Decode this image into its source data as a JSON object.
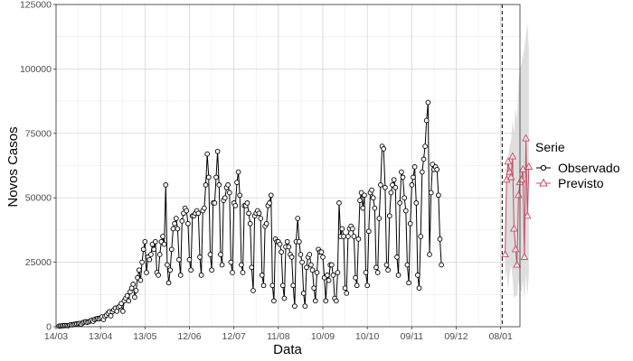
{
  "chart_data": {
    "type": "line",
    "xlabel": "Data",
    "ylabel": "Novos Casos",
    "ylim": [
      0,
      125000
    ],
    "y_ticks": [
      0,
      25000,
      50000,
      75000,
      100000,
      125000
    ],
    "y_tick_labels": [
      "0",
      "25000",
      "50000",
      "75000",
      "100000",
      "125000"
    ],
    "x_domain": [
      "2020-03-14",
      "2021-01-21"
    ],
    "x_ticks": [
      "2020-03-14",
      "2020-04-13",
      "2020-05-13",
      "2020-06-12",
      "2020-07-12",
      "2020-08-11",
      "2020-09-10",
      "2020-10-10",
      "2020-11-09",
      "2020-12-09",
      "2021-01-08"
    ],
    "x_tick_labels": [
      "14/03",
      "13/04",
      "13/05",
      "12/06",
      "12/07",
      "11/08",
      "10/09",
      "10/10",
      "09/11",
      "09/12",
      "08/01"
    ],
    "vline": "2021-01-09",
    "grid": true,
    "legend": {
      "title": "Serie",
      "position": "right"
    },
    "colors": {
      "observed": "#000000",
      "forecast": "#c44e64",
      "band": "#d3d3d3"
    },
    "series": [
      {
        "name": "Observado",
        "marker": "circle",
        "start": "2020-03-16",
        "values": [
          200,
          300,
          350,
          400,
          500,
          450,
          400,
          600,
          800,
          700,
          900,
          1000,
          1100,
          1200,
          1300,
          1000,
          1500,
          1800,
          2000,
          1700,
          1900,
          2200,
          2500,
          2100,
          2800,
          3000,
          3200,
          3000,
          3400,
          3800,
          2800,
          4000,
          4500,
          5200,
          5800,
          4200,
          5800,
          6500,
          7200,
          6000,
          7500,
          8000,
          9000,
          6000,
          10000,
          11000,
          12000,
          10000,
          13500,
          15000,
          16500,
          11500,
          14000,
          19000,
          22000,
          18000,
          25000,
          30000,
          33000,
          21000,
          27000,
          26000,
          28000,
          32000,
          30000,
          33000,
          21000,
          20000,
          28000,
          33000,
          35000,
          32000,
          55000,
          24000,
          17000,
          22000,
          30000,
          38000,
          40000,
          42000,
          38000,
          26000,
          20000,
          41000,
          44000,
          46000,
          45000,
          40000,
          26000,
          22000,
          43000,
          43000,
          44000,
          45000,
          44000,
          27000,
          20000,
          45000,
          46000,
          55000,
          67000,
          58000,
          28000,
          22000,
          48000,
          48000,
          58000,
          68000,
          55000,
          28000,
          24000,
          49000,
          50000,
          54000,
          55000,
          52000,
          25000,
          21000,
          48000,
          47000,
          56000,
          60000,
          51000,
          24000,
          21000,
          47000,
          47000,
          48000,
          44000,
          40000,
          23000,
          14000,
          43000,
          44000,
          45000,
          44000,
          42000,
          20000,
          16000,
          39000,
          40000,
          47000,
          48000,
          51000,
          16000,
          10000,
          34000,
          33000,
          33000,
          32000,
          29000,
          16000,
          11000,
          31000,
          33000,
          31000,
          28000,
          27000,
          16000,
          8000,
          33000,
          42000,
          33000,
          28000,
          25000,
          13000,
          8000,
          23000,
          27000,
          28000,
          24000,
          22000,
          15000,
          10000,
          21000,
          30000,
          29000,
          29000,
          27000,
          19000,
          10000,
          20000,
          18000,
          24000,
          24000,
          20000,
          11000,
          10000,
          21000,
          48000,
          35000,
          38000,
          35000,
          15000,
          13000,
          35000,
          38000,
          39000,
          38000,
          35000,
          19000,
          16000,
          34000,
          49000,
          52000,
          46000,
          51000,
          21000,
          16000,
          37000,
          52000,
          53000,
          50000,
          46000,
          23000,
          21000,
          42000,
          55000,
          70000,
          69000,
          54000,
          24000,
          22000,
          43000,
          52000,
          55000,
          57000,
          54000,
          27000,
          20000,
          48000,
          60000,
          58000,
          50000,
          45000,
          24000,
          17000,
          40000,
          55000,
          58000,
          62000,
          48000,
          20000,
          15000,
          35000,
          60000,
          65000,
          70000,
          80000,
          87000,
          28000,
          52000,
          63000,
          61000,
          62000,
          61000,
          51000,
          34000,
          24000
        ]
      },
      {
        "name": "Previsto",
        "marker": "triangle",
        "start": "2021-01-11",
        "values": [
          28000,
          57000,
          64000,
          60000,
          58000,
          66000,
          38000,
          30000,
          24000,
          51000,
          56000,
          57000,
          61000,
          27000,
          73000,
          43000,
          62000
        ],
        "band_lower": [
          18000,
          22000,
          14000,
          20000,
          24000,
          19000,
          11000,
          12000,
          12000,
          18000,
          15000,
          13000,
          18000,
          10000,
          20000,
          12000,
          20000
        ],
        "band_upper": [
          40000,
          62000,
          66000,
          70000,
          72000,
          80000,
          75000,
          85000,
          80000,
          95000,
          100000,
          102000,
          105000,
          108000,
          113000,
          118000,
          108000
        ]
      }
    ]
  }
}
